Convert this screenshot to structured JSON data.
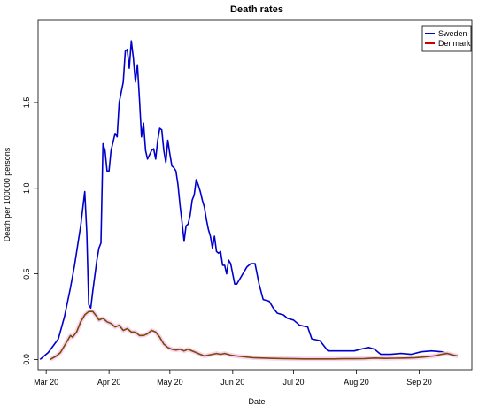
{
  "chart_data": {
    "type": "line",
    "title": "Death rates",
    "xlabel": "Date",
    "ylabel": "Death per 100000 persons",
    "x_axis": {
      "type": "date",
      "range": [
        "2020-02-26",
        "2020-09-27"
      ],
      "ticks": [
        {
          "date": "2020-03-01",
          "label": "Mar 20"
        },
        {
          "date": "2020-04-01",
          "label": "Apr 20"
        },
        {
          "date": "2020-05-01",
          "label": "May 20"
        },
        {
          "date": "2020-06-01",
          "label": "Jun 20"
        },
        {
          "date": "2020-07-01",
          "label": "Jul 20"
        },
        {
          "date": "2020-08-01",
          "label": "Aug 20"
        },
        {
          "date": "2020-09-01",
          "label": "Sep 20"
        }
      ]
    },
    "y_axis": {
      "range": [
        -0.06,
        1.98
      ],
      "ticks": [
        {
          "value": 0.0,
          "label": "0.0"
        },
        {
          "value": 0.5,
          "label": "0.5"
        },
        {
          "value": 1.0,
          "label": "1.0"
        },
        {
          "value": 1.5,
          "label": "1.5"
        }
      ]
    },
    "grid": false,
    "legend": {
      "position": "top-right",
      "entries": [
        "Sweden",
        "Denmark"
      ]
    },
    "series": [
      {
        "name": "Sweden",
        "color": "#0000cc",
        "points": [
          [
            "2020-02-27",
            0.0
          ],
          [
            "2020-03-02",
            0.04
          ],
          [
            "2020-03-07",
            0.12
          ],
          [
            "2020-03-10",
            0.25
          ],
          [
            "2020-03-13",
            0.42
          ],
          [
            "2020-03-15",
            0.55
          ],
          [
            "2020-03-18",
            0.78
          ],
          [
            "2020-03-20",
            0.98
          ],
          [
            "2020-03-21",
            0.74
          ],
          [
            "2020-03-22",
            0.32
          ],
          [
            "2020-03-23",
            0.3
          ],
          [
            "2020-03-24",
            0.4
          ],
          [
            "2020-03-26",
            0.58
          ],
          [
            "2020-03-27",
            0.65
          ],
          [
            "2020-03-28",
            0.68
          ],
          [
            "2020-03-29",
            1.26
          ],
          [
            "2020-03-30",
            1.22
          ],
          [
            "2020-03-31",
            1.1
          ],
          [
            "2020-04-01",
            1.1
          ],
          [
            "2020-04-02",
            1.22
          ],
          [
            "2020-04-04",
            1.32
          ],
          [
            "2020-04-05",
            1.3
          ],
          [
            "2020-04-06",
            1.5
          ],
          [
            "2020-04-08",
            1.62
          ],
          [
            "2020-04-09",
            1.8
          ],
          [
            "2020-04-10",
            1.81
          ],
          [
            "2020-04-11",
            1.7
          ],
          [
            "2020-04-12",
            1.86
          ],
          [
            "2020-04-13",
            1.76
          ],
          [
            "2020-04-14",
            1.62
          ],
          [
            "2020-04-15",
            1.72
          ],
          [
            "2020-04-16",
            1.52
          ],
          [
            "2020-04-17",
            1.3
          ],
          [
            "2020-04-18",
            1.38
          ],
          [
            "2020-04-19",
            1.22
          ],
          [
            "2020-04-20",
            1.17
          ],
          [
            "2020-04-22",
            1.22
          ],
          [
            "2020-04-23",
            1.23
          ],
          [
            "2020-04-24",
            1.17
          ],
          [
            "2020-04-25",
            1.28
          ],
          [
            "2020-04-26",
            1.35
          ],
          [
            "2020-04-27",
            1.34
          ],
          [
            "2020-04-28",
            1.22
          ],
          [
            "2020-04-29",
            1.15
          ],
          [
            "2020-04-30",
            1.28
          ],
          [
            "2020-05-01",
            1.2
          ],
          [
            "2020-05-02",
            1.13
          ],
          [
            "2020-05-03",
            1.12
          ],
          [
            "2020-05-04",
            1.1
          ],
          [
            "2020-05-05",
            1.02
          ],
          [
            "2020-05-06",
            0.9
          ],
          [
            "2020-05-07",
            0.8
          ],
          [
            "2020-05-08",
            0.69
          ],
          [
            "2020-05-09",
            0.78
          ],
          [
            "2020-05-10",
            0.79
          ],
          [
            "2020-05-11",
            0.84
          ],
          [
            "2020-05-12",
            0.93
          ],
          [
            "2020-05-13",
            0.96
          ],
          [
            "2020-05-14",
            1.05
          ],
          [
            "2020-05-15",
            1.02
          ],
          [
            "2020-05-16",
            0.98
          ],
          [
            "2020-05-17",
            0.93
          ],
          [
            "2020-05-18",
            0.89
          ],
          [
            "2020-05-19",
            0.82
          ],
          [
            "2020-05-20",
            0.76
          ],
          [
            "2020-05-21",
            0.72
          ],
          [
            "2020-05-22",
            0.65
          ],
          [
            "2020-05-23",
            0.72
          ],
          [
            "2020-05-24",
            0.63
          ],
          [
            "2020-05-25",
            0.62
          ],
          [
            "2020-05-26",
            0.63
          ],
          [
            "2020-05-27",
            0.55
          ],
          [
            "2020-05-28",
            0.55
          ],
          [
            "2020-05-29",
            0.5
          ],
          [
            "2020-05-30",
            0.58
          ],
          [
            "2020-05-31",
            0.56
          ],
          [
            "2020-06-01",
            0.5
          ],
          [
            "2020-06-02",
            0.44
          ],
          [
            "2020-06-03",
            0.44
          ],
          [
            "2020-06-05",
            0.48
          ],
          [
            "2020-06-08",
            0.54
          ],
          [
            "2020-06-10",
            0.56
          ],
          [
            "2020-06-12",
            0.56
          ],
          [
            "2020-06-14",
            0.44
          ],
          [
            "2020-06-16",
            0.35
          ],
          [
            "2020-06-19",
            0.34
          ],
          [
            "2020-06-21",
            0.3
          ],
          [
            "2020-06-23",
            0.27
          ],
          [
            "2020-06-26",
            0.26
          ],
          [
            "2020-06-28",
            0.24
          ],
          [
            "2020-07-01",
            0.23
          ],
          [
            "2020-07-04",
            0.2
          ],
          [
            "2020-07-08",
            0.19
          ],
          [
            "2020-07-10",
            0.12
          ],
          [
            "2020-07-14",
            0.11
          ],
          [
            "2020-07-18",
            0.05
          ],
          [
            "2020-07-22",
            0.05
          ],
          [
            "2020-07-26",
            0.05
          ],
          [
            "2020-07-31",
            0.05
          ],
          [
            "2020-08-03",
            0.06
          ],
          [
            "2020-08-07",
            0.07
          ],
          [
            "2020-08-10",
            0.06
          ],
          [
            "2020-08-13",
            0.03
          ],
          [
            "2020-08-18",
            0.03
          ],
          [
            "2020-08-23",
            0.035
          ],
          [
            "2020-08-28",
            0.03
          ],
          [
            "2020-09-02",
            0.045
          ],
          [
            "2020-09-07",
            0.05
          ],
          [
            "2020-09-12",
            0.045
          ],
          [
            "2020-09-15",
            0.035
          ],
          [
            "2020-09-18",
            0.02
          ]
        ]
      },
      {
        "name": "Denmark",
        "color": "#cc0000",
        "points": [
          [
            "2020-03-03",
            0.0
          ],
          [
            "2020-03-06",
            0.02
          ],
          [
            "2020-03-08",
            0.04
          ],
          [
            "2020-03-10",
            0.08
          ],
          [
            "2020-03-12",
            0.12
          ],
          [
            "2020-03-13",
            0.14
          ],
          [
            "2020-03-14",
            0.13
          ],
          [
            "2020-03-16",
            0.16
          ],
          [
            "2020-03-18",
            0.22
          ],
          [
            "2020-03-20",
            0.26
          ],
          [
            "2020-03-22",
            0.28
          ],
          [
            "2020-03-24",
            0.28
          ],
          [
            "2020-03-26",
            0.25
          ],
          [
            "2020-03-27",
            0.23
          ],
          [
            "2020-03-29",
            0.24
          ],
          [
            "2020-03-31",
            0.22
          ],
          [
            "2020-04-02",
            0.21
          ],
          [
            "2020-04-04",
            0.19
          ],
          [
            "2020-04-06",
            0.2
          ],
          [
            "2020-04-08",
            0.17
          ],
          [
            "2020-04-10",
            0.18
          ],
          [
            "2020-04-12",
            0.16
          ],
          [
            "2020-04-14",
            0.16
          ],
          [
            "2020-04-16",
            0.14
          ],
          [
            "2020-04-18",
            0.14
          ],
          [
            "2020-04-20",
            0.15
          ],
          [
            "2020-04-22",
            0.17
          ],
          [
            "2020-04-24",
            0.16
          ],
          [
            "2020-04-26",
            0.13
          ],
          [
            "2020-04-28",
            0.09
          ],
          [
            "2020-04-30",
            0.07
          ],
          [
            "2020-05-02",
            0.06
          ],
          [
            "2020-05-04",
            0.055
          ],
          [
            "2020-05-06",
            0.06
          ],
          [
            "2020-05-08",
            0.05
          ],
          [
            "2020-05-10",
            0.06
          ],
          [
            "2020-05-12",
            0.05
          ],
          [
            "2020-05-14",
            0.04
          ],
          [
            "2020-05-16",
            0.03
          ],
          [
            "2020-05-18",
            0.02
          ],
          [
            "2020-05-20",
            0.025
          ],
          [
            "2020-05-22",
            0.03
          ],
          [
            "2020-05-24",
            0.035
          ],
          [
            "2020-05-26",
            0.03
          ],
          [
            "2020-05-28",
            0.035
          ],
          [
            "2020-05-31",
            0.025
          ],
          [
            "2020-06-03",
            0.02
          ],
          [
            "2020-06-07",
            0.015
          ],
          [
            "2020-06-11",
            0.01
          ],
          [
            "2020-06-16",
            0.008
          ],
          [
            "2020-06-21",
            0.006
          ],
          [
            "2020-06-26",
            0.005
          ],
          [
            "2020-07-01",
            0.004
          ],
          [
            "2020-07-06",
            0.003
          ],
          [
            "2020-07-11",
            0.003
          ],
          [
            "2020-07-16",
            0.003
          ],
          [
            "2020-07-21",
            0.003
          ],
          [
            "2020-07-26",
            0.004
          ],
          [
            "2020-07-31",
            0.004
          ],
          [
            "2020-08-05",
            0.005
          ],
          [
            "2020-08-10",
            0.008
          ],
          [
            "2020-08-15",
            0.006
          ],
          [
            "2020-08-20",
            0.007
          ],
          [
            "2020-08-25",
            0.008
          ],
          [
            "2020-08-30",
            0.01
          ],
          [
            "2020-09-04",
            0.015
          ],
          [
            "2020-09-08",
            0.02
          ],
          [
            "2020-09-12",
            0.03
          ],
          [
            "2020-09-15",
            0.035
          ],
          [
            "2020-09-18",
            0.025
          ],
          [
            "2020-09-20",
            0.02
          ]
        ]
      }
    ]
  }
}
